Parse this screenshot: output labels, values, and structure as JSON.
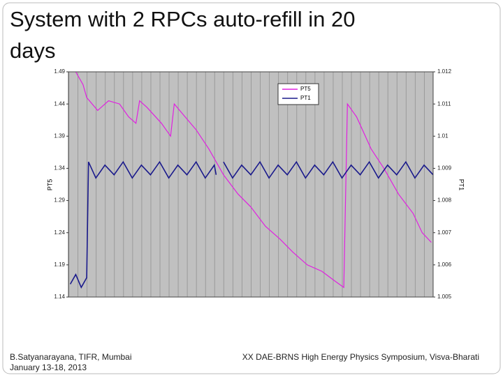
{
  "title": "System with 2 RPCs auto-refill in 20 days",
  "footer": {
    "author": "B.Satyanarayana, TIFR, Mumbai",
    "date": "January 13-18, 2013",
    "event": "XX DAE-BRNS High Energy Physics Symposium, Visva-Bharati"
  },
  "chart_data": {
    "type": "line",
    "y_label": "PT5",
    "y2_label": "PT1",
    "xlim": [
      0,
      20
    ],
    "ylim": [
      1.14,
      1.49
    ],
    "yticks": [
      1.14,
      1.19,
      1.24,
      1.29,
      1.34,
      1.39,
      1.44,
      1.49
    ],
    "y2lim": [
      1.005,
      1.012
    ],
    "y2ticks": [
      1.005,
      1.006,
      1.007,
      1.008,
      1.009,
      1.01,
      1.011,
      1.012
    ],
    "series": [
      {
        "name": "PT5",
        "color": "#e020e0",
        "x": [
          0.4,
          0.8,
          1.0,
          1.6,
          2.2,
          2.8,
          3.3,
          3.7,
          3.9,
          4.3,
          5.1,
          5.6,
          5.8,
          6.4,
          7.0,
          7.7,
          8.5,
          9.3,
          10.0,
          10.8,
          11.6,
          12.3,
          13.1,
          13.9,
          14.6,
          15.1,
          15.3,
          15.8,
          16.6,
          17.3,
          18.1,
          18.9,
          19.4,
          19.9
        ],
        "values": [
          1.49,
          1.47,
          1.45,
          1.43,
          1.445,
          1.44,
          1.42,
          1.41,
          1.445,
          1.435,
          1.41,
          1.39,
          1.44,
          1.42,
          1.4,
          1.37,
          1.33,
          1.3,
          1.28,
          1.25,
          1.23,
          1.21,
          1.19,
          1.18,
          1.165,
          1.155,
          1.44,
          1.42,
          1.37,
          1.34,
          1.3,
          1.27,
          1.24,
          1.225
        ]
      },
      {
        "name": "PT1",
        "color": "#1a1a8c",
        "axis": "y2",
        "x": [
          0.1,
          0.4,
          0.7,
          1.0,
          1.1,
          1.5,
          2.0,
          2.5,
          3.0,
          3.5,
          4.0,
          4.5,
          5.0,
          5.5,
          6.0,
          6.5,
          7.0,
          7.5,
          8.0,
          8.1,
          8.3,
          8.5,
          9.0,
          9.5,
          10.0,
          10.5,
          11.0,
          11.5,
          12.0,
          12.5,
          13.0,
          13.5,
          14.0,
          14.5,
          15.0,
          15.5,
          16.0,
          16.5,
          17.0,
          17.5,
          18.0,
          18.5,
          19.0,
          19.5,
          20.0
        ],
        "values": [
          1.0054,
          1.0057,
          1.0053,
          1.0056,
          1.0092,
          1.0087,
          1.0091,
          1.0088,
          1.0092,
          1.0087,
          1.0091,
          1.0088,
          1.0092,
          1.0087,
          1.0091,
          1.0088,
          1.0092,
          1.0087,
          1.0091,
          1.0088,
          null,
          1.0092,
          1.0087,
          1.0091,
          1.0088,
          1.0092,
          1.0087,
          1.0091,
          1.0088,
          1.0092,
          1.0087,
          1.0091,
          1.0088,
          1.0092,
          1.0087,
          1.0091,
          1.0088,
          1.0092,
          1.0087,
          1.0091,
          1.0088,
          1.0092,
          1.0087,
          1.0091,
          1.0088
        ]
      }
    ]
  }
}
